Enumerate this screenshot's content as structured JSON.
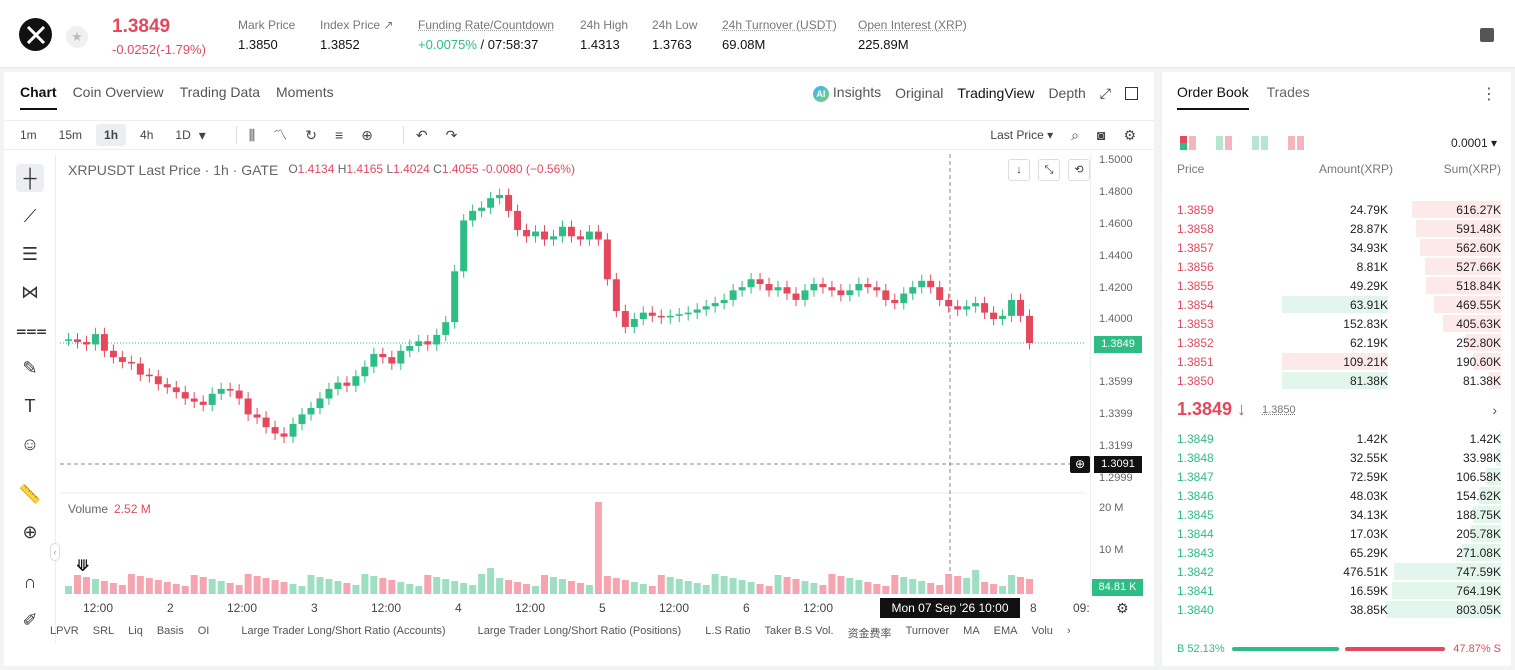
{
  "header": {
    "price": "1.3849",
    "change": "-0.0252(-1.79%)",
    "stats": [
      {
        "label": "Mark Price",
        "value": "1.3850"
      },
      {
        "label": "Index Price ↗",
        "value": "1.3852"
      },
      {
        "label": "Funding Rate/Countdown",
        "value_green": "+0.0075%",
        "value": "/ 07:58:37"
      },
      {
        "label": "24h High",
        "value": "1.4313"
      },
      {
        "label": "24h Low",
        "value": "1.3763"
      },
      {
        "label": "24h Turnover (USDT)",
        "value": "69.08M"
      },
      {
        "label": "Open Interest (XRP)",
        "value": "225.89M"
      }
    ]
  },
  "chart_tabs": [
    "Chart",
    "Coin Overview",
    "Trading Data",
    "Moments"
  ],
  "chart_right_tabs": {
    "insights": "Insights",
    "original": "Original",
    "tradingview": "TradingView",
    "depth": "Depth"
  },
  "intervals": [
    "1m",
    "15m",
    "1h",
    "4h",
    "1D"
  ],
  "last_price_select": "Last Price",
  "legend": {
    "symbol": "XRPUSDT Last Price · 1h · GATE",
    "o": "1.4134",
    "h": "1.4165",
    "l": "1.4024",
    "c": "1.4055",
    "chg": "-0.0080 (−0.56%)"
  },
  "volume": {
    "label": "Volume",
    "value": "2.52 M",
    "last": "84.81 K"
  },
  "price_tag": "1.3849",
  "cross_price": "1.3091",
  "cross_time": "Mon 07 Sep '26   10:00",
  "y_labels": [
    "1.5000",
    "1.4800",
    "1.4600",
    "1.4400",
    "1.4200",
    "1.4000",
    "1.3599",
    "1.3399",
    "1.3199",
    "1.2999"
  ],
  "vol_y_labels": [
    "20 M",
    "10 M"
  ],
  "x_labels": [
    "12:00",
    "2",
    "12:00",
    "3",
    "12:00",
    "4",
    "12:00",
    "5",
    "12:00",
    "6",
    "12:00",
    "8",
    "09:"
  ],
  "indicators": [
    "LPVR",
    "SRL",
    "Liq",
    "Basis",
    "OI",
    "Large Trader Long/Short Ratio (Accounts)",
    "Large Trader Long/Short Ratio (Positions)",
    "L.S Ratio",
    "Taker B.S Vol.",
    "资金费率",
    "Turnover",
    "MA",
    "EMA",
    "Volu"
  ],
  "orderbook": {
    "tabs": [
      "Order Book",
      "Trades"
    ],
    "precision": "0.0001",
    "headers": {
      "price": "Price",
      "amount": "Amount(XRP)",
      "sum": "Sum(XRP)"
    },
    "asks": [
      {
        "price": "1.3859",
        "amount": "24.79K",
        "sum": "616.27K",
        "depth": 0.77
      },
      {
        "price": "1.3858",
        "amount": "28.87K",
        "sum": "591.48K",
        "depth": 0.74
      },
      {
        "price": "1.3857",
        "amount": "34.93K",
        "sum": "562.60K",
        "depth": 0.7
      },
      {
        "price": "1.3856",
        "amount": "8.81K",
        "sum": "527.66K",
        "depth": 0.66
      },
      {
        "price": "1.3855",
        "amount": "49.29K",
        "sum": "518.84K",
        "depth": 0.65
      },
      {
        "price": "1.3854",
        "amount": "63.91K",
        "sum": "469.55K",
        "depth": 0.58,
        "hl": "green"
      },
      {
        "price": "1.3853",
        "amount": "152.83K",
        "sum": "405.63K",
        "depth": 0.5
      },
      {
        "price": "1.3852",
        "amount": "62.19K",
        "sum": "252.80K",
        "depth": 0.31
      },
      {
        "price": "1.3851",
        "amount": "109.21K",
        "sum": "190.60K",
        "depth": 0.24,
        "hl": "red"
      },
      {
        "price": "1.3850",
        "amount": "81.38K",
        "sum": "81.38K",
        "depth": 0.1,
        "hl": "green"
      }
    ],
    "mid_price": "1.3849 ↓",
    "mid_mark": "1.3850",
    "bids": [
      {
        "price": "1.3849",
        "amount": "1.42K",
        "sum": "1.42K",
        "depth": 0.01
      },
      {
        "price": "1.3848",
        "amount": "32.55K",
        "sum": "33.98K",
        "depth": 0.04
      },
      {
        "price": "1.3847",
        "amount": "72.59K",
        "sum": "106.58K",
        "depth": 0.13
      },
      {
        "price": "1.3846",
        "amount": "48.03K",
        "sum": "154.62K",
        "depth": 0.19
      },
      {
        "price": "1.3845",
        "amount": "34.13K",
        "sum": "188.75K",
        "depth": 0.24
      },
      {
        "price": "1.3844",
        "amount": "17.03K",
        "sum": "205.78K",
        "depth": 0.26
      },
      {
        "price": "1.3843",
        "amount": "65.29K",
        "sum": "271.08K",
        "depth": 0.34
      },
      {
        "price": "1.3842",
        "amount": "476.51K",
        "sum": "747.59K",
        "depth": 0.93
      },
      {
        "price": "1.3841",
        "amount": "16.59K",
        "sum": "764.19K",
        "depth": 0.95
      },
      {
        "price": "1.3840",
        "amount": "38.85K",
        "sum": "803.05K",
        "depth": 1.0
      }
    ],
    "buy_ratio": "B 52.13%",
    "sell_ratio": "47.87% S"
  },
  "colors": {
    "up": "#2ebd85",
    "down": "#e5485d"
  }
}
